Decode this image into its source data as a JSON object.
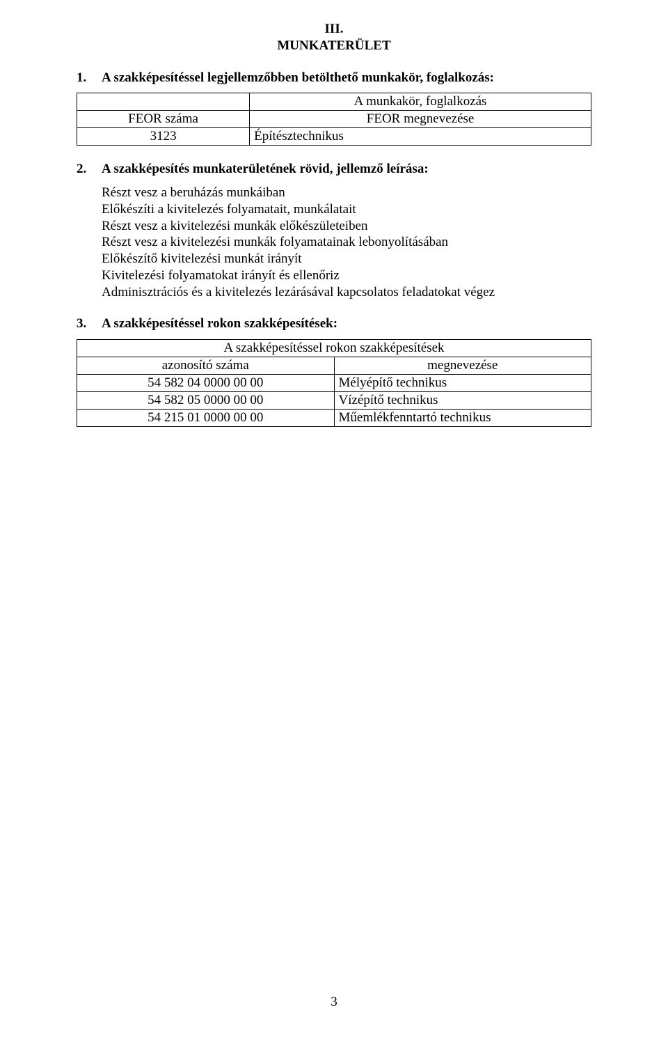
{
  "header": {
    "roman": "III.",
    "title": "MUNKATERÜLET"
  },
  "section1": {
    "num": "1.",
    "heading": "A szakképesítéssel legjellemzőbben betölthető munkakör, foglalkozás:",
    "table": {
      "above": "A munkakör, foglalkozás",
      "left_header": "FEOR száma",
      "right_header": "FEOR megnevezése",
      "left_value": "3123",
      "right_value": "Építésztechnikus"
    }
  },
  "section2": {
    "num": "2.",
    "heading": "A szakképesítés munkaterületének rövid, jellemző leírása:",
    "lines": {
      "l0": "Részt vesz a beruházás munkáiban",
      "l1": "Előkészíti a kivitelezés folyamatait, munkálatait",
      "l2": "Részt vesz a kivitelezési munkák előkészületeiben",
      "l3": "Részt vesz a kivitelezési munkák folyamatainak lebonyolításában",
      "l4": "Előkészítő kivitelezési munkát irányít",
      "l5": "Kivitelezési folyamatokat irányít és ellenőriz",
      "l6": "Adminisztrációs és a kivitelezés lezárásával kapcsolatos feladatokat végez"
    }
  },
  "section3": {
    "num": "3.",
    "heading": "A szakképesítéssel rokon szakképesítések:",
    "table": {
      "span_header": "A szakképesítéssel rokon szakképesítések",
      "col_left": "azonosító száma",
      "col_right": "megnevezése",
      "rows": {
        "r0": {
          "id": "54 582 04 0000 00 00",
          "name": "Mélyépítő technikus"
        },
        "r1": {
          "id": "54 582 05 0000 00 00",
          "name": "Vízépítő technikus"
        },
        "r2": {
          "id": "54 215 01 0000 00 00",
          "name": "Műemlékfenntartó technikus"
        }
      }
    }
  },
  "page_number": "3"
}
